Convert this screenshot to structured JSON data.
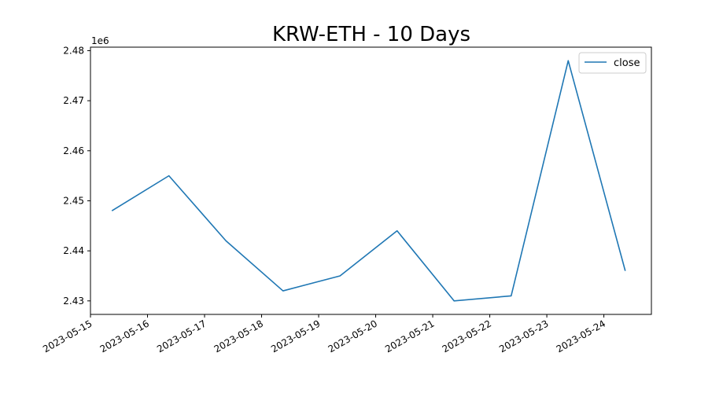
{
  "chart_data": {
    "type": "line",
    "title": "KRW-ETH - 10 Days",
    "xlabel": "",
    "ylabel": "",
    "y_offset_label": "1e6",
    "y_multiplier": 1000000,
    "x_tick_labels": [
      "2023-05-15",
      "2023-05-16",
      "2023-05-17",
      "2023-05-18",
      "2023-05-19",
      "2023-05-20",
      "2023-05-21",
      "2023-05-22",
      "2023-05-23",
      "2023-05-24"
    ],
    "y_tick_values": [
      2.43,
      2.44,
      2.45,
      2.46,
      2.47,
      2.48
    ],
    "y_tick_labels": [
      "2.43",
      "2.44",
      "2.45",
      "2.46",
      "2.47",
      "2.48"
    ],
    "xlim": [
      "2023-05-15T00:00",
      "2023-05-24T20:00"
    ],
    "ylim": [
      2.4273,
      2.4807
    ],
    "grid": false,
    "legend_position": "upper right",
    "line_color": "#1f77b4",
    "series": [
      {
        "name": "close",
        "x": [
          "2023-05-15T09:00",
          "2023-05-16T09:00",
          "2023-05-17T09:00",
          "2023-05-18T09:00",
          "2023-05-19T09:00",
          "2023-05-20T09:00",
          "2023-05-21T09:00",
          "2023-05-22T09:00",
          "2023-05-23T09:00",
          "2023-05-24T09:00"
        ],
        "y": [
          2448000,
          2455000,
          2442000,
          2432000,
          2435000,
          2444000,
          2430000,
          2431000,
          2478000,
          2436000
        ]
      }
    ]
  }
}
